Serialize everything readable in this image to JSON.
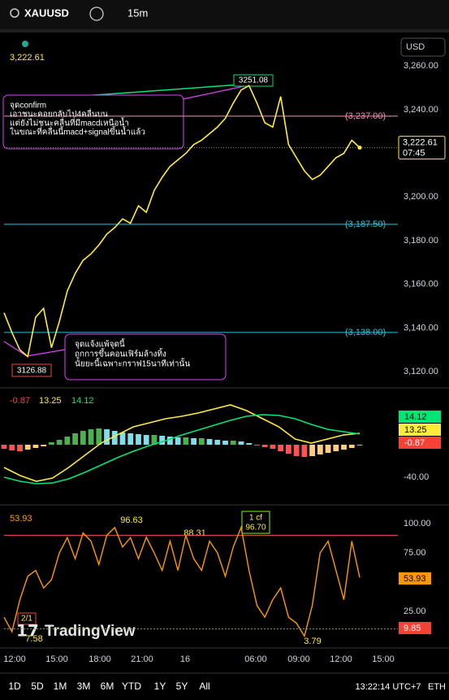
{
  "toolbar": {
    "symbol": "XAUUSD",
    "interval": "15m"
  },
  "price_pane": {
    "last_price": "3,222.61",
    "currency": "USD",
    "ylim": [
      3113.4,
      3275.3
    ],
    "yticks": [
      {
        "value": 3260,
        "label": "3,260.00"
      },
      {
        "value": 3240,
        "label": "3,240.00"
      },
      {
        "value": 3200,
        "label": "3,200.00"
      },
      {
        "value": 3180,
        "label": "3,180.00"
      },
      {
        "value": 3160,
        "label": "3,160.00"
      },
      {
        "value": 3140,
        "label": "3,140.00"
      },
      {
        "value": 3120,
        "label": "3,120.00"
      }
    ],
    "hlines": [
      {
        "value": 3237,
        "label": "(3,237.00) -",
        "color": "#f48fb1"
      },
      {
        "value": 3187.5,
        "label": "(3,187.50) -",
        "color": "#26c6da"
      },
      {
        "value": 3138,
        "label": "(3,138.00) -",
        "color": "#26c6da"
      }
    ],
    "price_tag": {
      "value": 3222.61,
      "label": "3,222.61",
      "countdown": "07:45"
    },
    "high_label": "3251.08",
    "low_label": "3126.88",
    "note_top": [
      "จุดconfirm",
      "เอาชนะคอยกลับไป4คลื่นบน",
      "แต่ยังไม่ชนะคลื่นที่มีmacdเหนือน้ำ",
      "ในขณะที่คลื่นนี้macd+signalขึ้นน้ำแล้ว"
    ],
    "note_bottom": [
      "จุดแจ้งแพ้จุดนี้",
      "ถูกการขึ้นคอนเฟิร์มล้างทิ้ง",
      "นัยยะนี้เฉพาะกราฟ15นาทีเท่านั้น"
    ],
    "color": "#ffeb3b",
    "values": [
      3147,
      3138,
      3130,
      3127,
      3145,
      3149,
      3131,
      3143,
      3157,
      3165,
      3171,
      3174,
      3178,
      3183,
      3186,
      3190,
      3188,
      3196,
      3193,
      3203,
      3209,
      3214,
      3217,
      3220,
      3224,
      3226,
      3229,
      3232,
      3236,
      3243,
      3249,
      3251,
      3243,
      3234,
      3232,
      3246,
      3224,
      3218,
      3212,
      3208,
      3210,
      3214,
      3218,
      3220,
      3226,
      3222.61
    ]
  },
  "macd_pane": {
    "legend": [
      "-0.87",
      "13.25",
      "14.12"
    ],
    "ylim": [
      -73,
      67
    ],
    "yticks": [
      {
        "value": -40,
        "label": "-40.00"
      }
    ],
    "tags": [
      "14.12",
      "13.25",
      "-0.87"
    ],
    "hist_colors": {
      "up_rising": "#4caf50",
      "up_falling": "#80deea",
      "down_falling": "#ff5252",
      "down_rising": "#ffcc80"
    },
    "histogram": [
      -5,
      -7,
      -8,
      -6,
      -4,
      -2,
      3,
      6,
      10,
      14,
      17,
      19,
      20,
      19,
      17,
      15,
      14,
      13,
      12,
      12,
      11,
      10,
      9,
      9,
      8,
      8,
      7,
      6,
      5,
      5,
      4,
      2,
      -1,
      -3,
      -5,
      -8,
      -11,
      -14,
      -15,
      -14,
      -12,
      -10,
      -8,
      -6,
      -4,
      -0.87
    ],
    "series": [
      {
        "color": "#ffeb3b",
        "values": [
          -28,
          -38,
          -45,
          -41,
          -28,
          -13,
          2,
          12,
          22,
          27,
          32,
          35,
          39,
          44,
          49,
          42,
          32,
          22,
          7,
          2,
          7,
          12,
          14.12
        ]
      },
      {
        "color": "#00e676",
        "values": [
          -40,
          -45,
          -48,
          -47,
          -42,
          -34,
          -25,
          -16,
          -8,
          -1,
          5,
          12,
          18,
          24,
          30,
          35,
          37,
          36,
          32,
          25,
          19,
          16,
          13.25
        ]
      }
    ]
  },
  "rsi_pane": {
    "legend": "53.93",
    "ylim": [
      -4.9,
      115.3
    ],
    "yticks": [
      {
        "value": 100,
        "label": "100.00"
      },
      {
        "value": 75,
        "label": "75.00"
      },
      {
        "value": 25,
        "label": "25.00"
      }
    ],
    "bands": [
      90,
      10
    ],
    "tags": [
      "53.93",
      "9.85"
    ],
    "color": "#ff9800",
    "labels": [
      "96.63",
      "88.31",
      "1 cf",
      "96.70",
      "3.79",
      "7.58",
      "2/1"
    ],
    "values": [
      20,
      7.58,
      35,
      55,
      60,
      45,
      52,
      75,
      88,
      70,
      92,
      85,
      65,
      90,
      96.63,
      80,
      88,
      70,
      88.31,
      75,
      60,
      85,
      60,
      90,
      70,
      60,
      85,
      75,
      55,
      80,
      96.7,
      60,
      30,
      20,
      35,
      45,
      20,
      15,
      3.79,
      30,
      75,
      85,
      60,
      35,
      85,
      53.93
    ]
  },
  "watermark": "TradingView",
  "time_axis": [
    "12:00",
    "15:00",
    "18:00",
    "21:00",
    "16",
    "06:00",
    "09:00",
    "12:00",
    "15:00"
  ],
  "bottom_bar": {
    "ranges": [
      "1D",
      "5D",
      "1M",
      "3M",
      "6M",
      "YTD",
      "1Y",
      "5Y",
      "All"
    ],
    "clock": "13:22:14 UTC+7",
    "session": "ETH"
  }
}
